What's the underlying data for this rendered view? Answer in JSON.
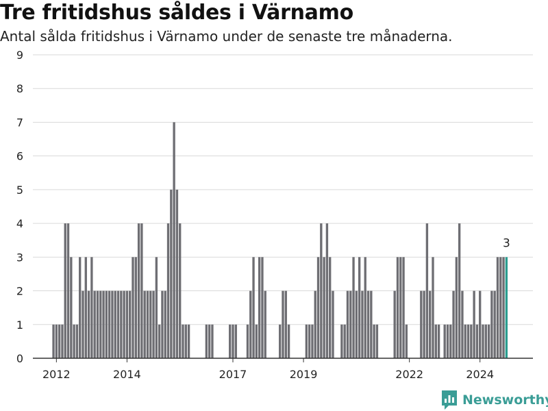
{
  "title": "Tre fritidshus såldes i Värnamo",
  "subtitle": "Antal sålda fritidshus i Värnamo under de senaste tre månaderna.",
  "brand": {
    "name": "Newsworthy",
    "icon": "newsworthy-logo-icon"
  },
  "colors": {
    "bar": "#6e6e73",
    "highlight": "#2a9d8f",
    "grid": "#d9d9d9",
    "axis": "#333333",
    "text": "#222222",
    "brand": "#3a9d96"
  },
  "chart_data": {
    "type": "bar",
    "title": "Tre fritidshus såldes i Värnamo",
    "subtitle": "Antal sålda fritidshus i Värnamo under de senaste tre månaderna.",
    "xlabel": "",
    "ylabel": "",
    "ylim": [
      0,
      9
    ],
    "yticks": [
      0,
      1,
      2,
      3,
      4,
      5,
      6,
      7,
      8,
      9
    ],
    "xlim": [
      "2011-05",
      "2025-07"
    ],
    "xticks": [
      {
        "date": "2012-01",
        "label": "2012"
      },
      {
        "date": "2014-01",
        "label": "2014"
      },
      {
        "date": "2017-01",
        "label": "2017"
      },
      {
        "date": "2019-01",
        "label": "2019"
      },
      {
        "date": "2022-01",
        "label": "2022"
      },
      {
        "date": "2024-01",
        "label": "2024"
      }
    ],
    "grid": true,
    "start_month": "2011-12",
    "values": [
      1,
      1,
      1,
      1,
      4,
      4,
      3,
      1,
      1,
      3,
      2,
      3,
      2,
      3,
      2,
      2,
      2,
      2,
      2,
      2,
      2,
      2,
      2,
      2,
      2,
      2,
      2,
      3,
      3,
      4,
      4,
      2,
      2,
      2,
      2,
      3,
      1,
      2,
      2,
      4,
      5,
      7,
      5,
      4,
      1,
      1,
      1,
      0,
      0,
      0,
      0,
      0,
      1,
      1,
      1,
      0,
      0,
      0,
      0,
      0,
      1,
      1,
      1,
      0,
      0,
      0,
      1,
      2,
      3,
      1,
      3,
      3,
      2,
      0,
      0,
      0,
      0,
      1,
      2,
      2,
      1,
      0,
      0,
      0,
      0,
      0,
      1,
      1,
      1,
      2,
      3,
      4,
      3,
      4,
      3,
      2,
      0,
      0,
      1,
      1,
      2,
      2,
      3,
      2,
      3,
      2,
      3,
      2,
      2,
      1,
      1,
      0,
      0,
      0,
      0,
      0,
      2,
      3,
      3,
      3,
      1,
      0,
      0,
      0,
      0,
      2,
      2,
      4,
      2,
      3,
      1,
      1,
      0,
      1,
      1,
      1,
      2,
      3,
      4,
      2,
      1,
      1,
      1,
      2,
      1,
      2,
      1,
      1,
      1,
      2,
      2,
      3,
      3,
      3,
      3
    ],
    "highlight_last": true,
    "annotation": {
      "label": "3"
    }
  }
}
